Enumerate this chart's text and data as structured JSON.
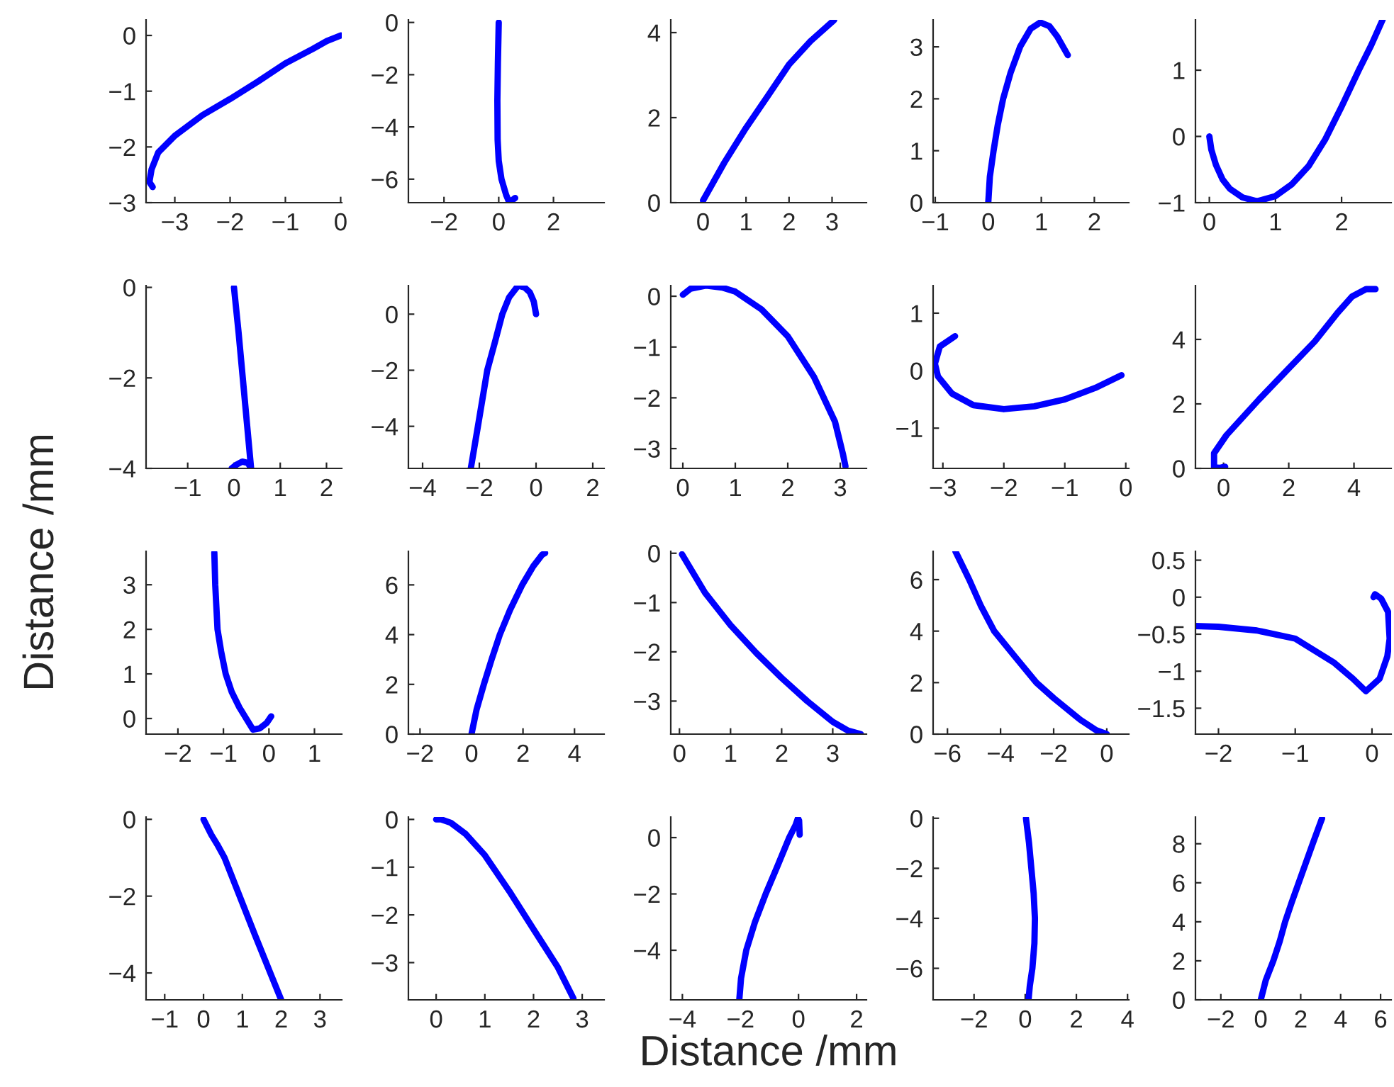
{
  "chart_data": [
    {
      "type": "line",
      "xlim": [
        -3.52,
        0.02
      ],
      "xticks": [
        -3,
        -2,
        -1,
        0
      ],
      "ylim": [
        -3,
        0.28
      ],
      "yticks": [
        -3,
        -2,
        -1,
        0
      ],
      "series": [
        {
          "color": "#0000ff",
          "x": [
            0,
            -0.25,
            -0.5,
            -1,
            -1.5,
            -2,
            -2.5,
            -3,
            -3.3,
            -3.42,
            -3.46,
            -3.4
          ],
          "values": [
            0,
            -0.1,
            -0.24,
            -0.5,
            -0.83,
            -1.14,
            -1.43,
            -1.8,
            -2.1,
            -2.4,
            -2.63,
            -2.72
          ]
        }
      ]
    },
    {
      "type": "line",
      "xlim": [
        -3.3,
        3.85
      ],
      "xticks": [
        -2,
        0,
        2
      ],
      "ylim": [
        -6.9,
        0.1
      ],
      "yticks": [
        -6,
        -4,
        -2,
        0
      ],
      "series": [
        {
          "color": "#0000ff",
          "x": [
            0,
            -0.03,
            -0.05,
            -0.04,
            0,
            0.1,
            0.27,
            0.38,
            0.5,
            0.6
          ],
          "values": [
            0,
            -1.5,
            -3,
            -4.5,
            -5.3,
            -6,
            -6.6,
            -6.88,
            -6.8,
            -6.72
          ]
        }
      ]
    },
    {
      "type": "line",
      "xlim": [
        -0.75,
        3.8
      ],
      "xticks": [
        0,
        1,
        2,
        3
      ],
      "ylim": [
        0,
        4.3
      ],
      "yticks": [
        0,
        2,
        4
      ],
      "series": [
        {
          "color": "#0000ff",
          "x": [
            0,
            0.25,
            0.5,
            1,
            1.5,
            2,
            2.5,
            3,
            3.05
          ],
          "values": [
            0.05,
            0.5,
            0.95,
            1.76,
            2.5,
            3.25,
            3.8,
            4.25,
            4.3
          ]
        }
      ]
    },
    {
      "type": "line",
      "xlim": [
        -1.04,
        2.65
      ],
      "xticks": [
        -1,
        0,
        1,
        2
      ],
      "ylim": [
        0,
        3.52
      ],
      "yticks": [
        0,
        1,
        2,
        3
      ],
      "series": [
        {
          "color": "#0000ff",
          "x": [
            0,
            0.03,
            0.1,
            0.18,
            0.28,
            0.42,
            0.6,
            0.8,
            0.98,
            1.15,
            1.3,
            1.5
          ],
          "values": [
            0,
            0.5,
            1,
            1.5,
            2,
            2.5,
            3,
            3.35,
            3.47,
            3.4,
            3.2,
            2.84
          ]
        }
      ]
    },
    {
      "type": "line",
      "xlim": [
        -0.21,
        2.75
      ],
      "xticks": [
        0,
        1,
        2
      ],
      "ylim": [
        -1,
        1.76
      ],
      "yticks": [
        -1,
        0,
        1
      ],
      "series": [
        {
          "color": "#0000ff",
          "x": [
            0,
            0.03,
            0.1,
            0.2,
            0.31,
            0.5,
            0.72,
            1,
            1.25,
            1.5,
            1.75,
            2,
            2.26,
            2.45,
            2.62
          ],
          "values": [
            0,
            -0.2,
            -0.43,
            -0.65,
            -0.79,
            -0.92,
            -0.98,
            -0.9,
            -0.72,
            -0.45,
            -0.05,
            0.45,
            1.0,
            1.38,
            1.76
          ]
        }
      ]
    },
    {
      "type": "line",
      "xlim": [
        -1.9,
        2.33
      ],
      "xticks": [
        -1,
        0,
        1,
        2
      ],
      "ylim": [
        -4,
        0.04
      ],
      "yticks": [
        -4,
        -2,
        0
      ],
      "series": [
        {
          "color": "#0000ff",
          "x": [
            0,
            0.1,
            0.19,
            0.28,
            0.37,
            0.3,
            0.18,
            0.05,
            -0.05
          ],
          "values": [
            0,
            -1,
            -2,
            -3,
            -4,
            -3.88,
            -3.85,
            -3.92,
            -4.0
          ]
        }
      ]
    },
    {
      "type": "line",
      "xlim": [
        -4.5,
        2.4
      ],
      "xticks": [
        -4,
        -2,
        0,
        2
      ],
      "ylim": [
        -5.5,
        1.02
      ],
      "yticks": [
        -4,
        -2,
        0
      ],
      "series": [
        {
          "color": "#0000ff",
          "x": [
            -2.3,
            -2.05,
            -1.72,
            -1.45,
            -1.19,
            -0.95,
            -0.63,
            -0.4,
            -0.22,
            -0.08,
            0
          ],
          "values": [
            -5.5,
            -4,
            -2,
            -1,
            0,
            0.6,
            1.02,
            0.95,
            0.78,
            0.45,
            0
          ]
        }
      ]
    },
    {
      "type": "line",
      "xlim": [
        -0.23,
        3.5
      ],
      "xticks": [
        0,
        1,
        2,
        3
      ],
      "ylim": [
        -3.39,
        0.21
      ],
      "yticks": [
        -3,
        -2,
        -1,
        0
      ],
      "series": [
        {
          "color": "#0000ff",
          "x": [
            0,
            0.15,
            0.45,
            0.75,
            1,
            1.5,
            2,
            2.5,
            2.9,
            3.05,
            3.1
          ],
          "values": [
            0.03,
            0.15,
            0.21,
            0.17,
            0.09,
            -0.26,
            -0.79,
            -1.59,
            -2.47,
            -3.1,
            -3.35
          ]
        }
      ]
    },
    {
      "type": "line",
      "xlim": [
        -3.16,
        0.05
      ],
      "xticks": [
        -3,
        -2,
        -1,
        0
      ],
      "ylim": [
        -1.7,
        1.48
      ],
      "yticks": [
        -1,
        0,
        1
      ],
      "series": [
        {
          "color": "#0000ff",
          "x": [
            -0.07,
            -0.5,
            -1,
            -1.5,
            -2,
            -2.5,
            -2.85,
            -3.08,
            -3.13,
            -3.05,
            -2.8
          ],
          "values": [
            -0.08,
            -0.3,
            -0.5,
            -0.62,
            -0.67,
            -0.6,
            -0.4,
            -0.1,
            0.12,
            0.42,
            0.6
          ]
        }
      ]
    },
    {
      "type": "line",
      "xlim": [
        -0.86,
        5.14
      ],
      "xticks": [
        0,
        2,
        4
      ],
      "ylim": [
        0,
        5.67
      ],
      "yticks": [
        0,
        2,
        4
      ],
      "series": [
        {
          "color": "#0000ff",
          "x": [
            0.05,
            -0.1,
            -0.29,
            -0.29,
            0.09,
            1.09,
            2.0,
            2.8,
            3.5,
            3.94,
            4.37,
            4.66
          ],
          "values": [
            0.05,
            0.02,
            0.03,
            0.47,
            1.03,
            2.14,
            3.1,
            3.94,
            4.83,
            5.33,
            5.56,
            5.56
          ]
        }
      ]
    },
    {
      "type": "line",
      "ylabel": "Distance /mm",
      "xlim": [
        -2.7,
        1.6
      ],
      "xticks": [
        -2,
        -1,
        0,
        1
      ],
      "ylim": [
        -0.35,
        3.75
      ],
      "yticks": [
        0,
        1,
        2,
        3
      ],
      "series": [
        {
          "color": "#0000ff",
          "x": [
            -1.2,
            -1.18,
            -1.13,
            -1.05,
            -0.95,
            -0.82,
            -0.65,
            -0.5,
            -0.35,
            -0.2,
            -0.05,
            0.05
          ],
          "values": [
            3.72,
            3.0,
            2.0,
            1.5,
            1.0,
            0.6,
            0.25,
            0.0,
            -0.25,
            -0.22,
            -0.1,
            0.05
          ]
        }
      ]
    },
    {
      "type": "line",
      "xlim": [
        -2.45,
        5.15
      ],
      "xticks": [
        -2,
        0,
        2,
        4
      ],
      "ylim": [
        0,
        7.35
      ],
      "yticks": [
        0,
        2,
        4,
        6
      ],
      "series": [
        {
          "color": "#0000ff",
          "x": [
            0,
            0.2,
            0.48,
            0.78,
            1.1,
            1.5,
            1.97,
            2.4,
            2.75,
            2.86
          ],
          "values": [
            0,
            1,
            2,
            3,
            4,
            5,
            6,
            6.75,
            7.22,
            7.28
          ]
        }
      ]
    },
    {
      "type": "line",
      "xlim": [
        -0.17,
        3.66
      ],
      "xticks": [
        0,
        1,
        2,
        3
      ],
      "ylim": [
        -3.67,
        0.04
      ],
      "yticks": [
        -3,
        -2,
        -1,
        0
      ],
      "series": [
        {
          "color": "#0000ff",
          "x": [
            0.05,
            0.5,
            1,
            1.5,
            2,
            2.5,
            3,
            3.3,
            3.55
          ],
          "values": [
            -0.02,
            -0.8,
            -1.46,
            -2.02,
            -2.53,
            -3.0,
            -3.42,
            -3.6,
            -3.67
          ]
        }
      ]
    },
    {
      "type": "line",
      "xlim": [
        -6.54,
        0.83
      ],
      "xticks": [
        -6,
        -4,
        -2,
        0
      ],
      "ylim": [
        0,
        7.1
      ],
      "yticks": [
        0,
        2,
        4,
        6
      ],
      "series": [
        {
          "color": "#0000ff",
          "x": [
            -5.7,
            -5.18,
            -4.75,
            -4.24,
            -3.45,
            -2.65,
            -2.0,
            -1.0,
            -0.4,
            0
          ],
          "values": [
            7.1,
            6,
            5,
            4,
            3,
            2,
            1.4,
            0.56,
            0.15,
            0
          ]
        }
      ]
    },
    {
      "type": "line",
      "xlim": [
        -2.3,
        0.25
      ],
      "xticks": [
        -2,
        -1,
        0
      ],
      "ylim": [
        -1.85,
        0.62
      ],
      "yticks": [
        -1.5,
        -1,
        -0.5,
        0,
        0.5
      ],
      "series": [
        {
          "color": "#0000ff",
          "x": [
            -2.3,
            -2.0,
            -1.5,
            -1.0,
            -0.5,
            -0.25,
            -0.08,
            0.1,
            0.2,
            0.23,
            0.21,
            0.12,
            0.04,
            0.02
          ],
          "values": [
            -0.39,
            -0.4,
            -0.45,
            -0.56,
            -0.88,
            -1.1,
            -1.27,
            -1.1,
            -0.8,
            -0.56,
            -0.2,
            -0.02,
            0.04,
            0.0
          ]
        }
      ]
    },
    {
      "type": "line",
      "xlim": [
        -1.48,
        3.56
      ],
      "xticks": [
        -1,
        0,
        1,
        2,
        3
      ],
      "ylim": [
        -4.7,
        0.06
      ],
      "yticks": [
        -4,
        -2,
        0
      ],
      "series": [
        {
          "color": "#0000ff",
          "x": [
            0,
            0.2,
            0.35,
            0.54,
            0.93,
            1.32,
            1.72,
            2.0
          ],
          "values": [
            0,
            -0.4,
            -0.65,
            -1,
            -2,
            -3,
            -4,
            -4.7
          ]
        }
      ]
    },
    {
      "type": "line",
      "xlim": [
        -0.57,
        3.45
      ],
      "xticks": [
        0,
        1,
        2,
        3
      ],
      "ylim": [
        -3.78,
        0.05
      ],
      "yticks": [
        -3,
        -2,
        -1,
        0
      ],
      "series": [
        {
          "color": "#0000ff",
          "x": [
            0,
            0.1,
            0.3,
            0.6,
            1,
            1.5,
            2,
            2.5,
            2.82
          ],
          "values": [
            0,
            0,
            -0.07,
            -0.3,
            -0.75,
            -1.5,
            -2.3,
            -3.1,
            -3.75
          ]
        }
      ]
    },
    {
      "type": "line",
      "xlabel": "Distance /mm",
      "xlim": [
        -4.4,
        2.34
      ],
      "xticks": [
        -4,
        -2,
        0,
        2
      ],
      "ylim": [
        -5.76,
        0.73
      ],
      "yticks": [
        -4,
        -2,
        0
      ],
      "series": [
        {
          "color": "#0000ff",
          "x": [
            -2.04,
            -1.98,
            -1.8,
            -1.5,
            -1.13,
            -0.72,
            -0.32,
            -0.1,
            -0.02,
            0.02,
            0.04
          ],
          "values": [
            -5.76,
            -5,
            -4,
            -3,
            -2,
            -1,
            0,
            0.45,
            0.69,
            0.6,
            0.1
          ]
        }
      ]
    },
    {
      "type": "line",
      "xlim": [
        -3.6,
        4.05
      ],
      "xticks": [
        -2,
        0,
        2,
        4
      ],
      "ylim": [
        -7.26,
        0.05
      ],
      "yticks": [
        -6,
        -4,
        -2,
        0
      ],
      "series": [
        {
          "color": "#0000ff",
          "x": [
            0.03,
            0.15,
            0.24,
            0.33,
            0.38,
            0.36,
            0.28,
            0.18,
            0.13
          ],
          "values": [
            0,
            -1,
            -2,
            -3,
            -4,
            -5,
            -6,
            -6.7,
            -7.26
          ]
        }
      ]
    },
    {
      "type": "line",
      "xlim": [
        -3.27,
        6.53
      ],
      "xticks": [
        -2,
        0,
        2,
        4,
        6
      ],
      "ylim": [
        0,
        9.37
      ],
      "yticks": [
        0,
        2,
        4,
        6,
        8
      ],
      "series": [
        {
          "color": "#0000ff",
          "x": [
            0,
            0.25,
            0.63,
            0.95,
            1.22,
            1.55,
            1.9,
            2.25,
            2.6,
            2.85,
            3.07
          ],
          "values": [
            0,
            1,
            2,
            3,
            4,
            5,
            6,
            7,
            8,
            8.7,
            9.3
          ]
        }
      ]
    }
  ]
}
